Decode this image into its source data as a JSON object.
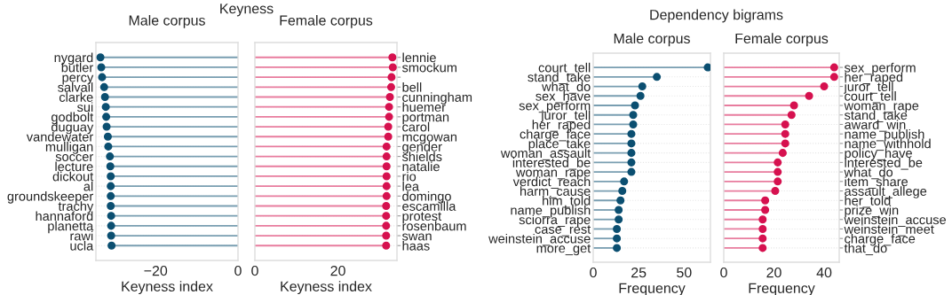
{
  "chart_data": [
    {
      "type": "lollipop",
      "title": "Male corpus",
      "annotations": [
        "Keyness"
      ],
      "xlabel": "Keyness index",
      "orientation": "horizontal",
      "grid": "y",
      "marker": "circle",
      "categories": [
        "nygard",
        "butler",
        "percy",
        "salvail",
        "clarke",
        "sui",
        "godbolt",
        "duguay",
        "vandewater",
        "mulligan",
        "soccer",
        "lecture",
        "dickout",
        "al",
        "groundskeeper",
        "trachy",
        "hannaford",
        "planetta",
        "rawi",
        "ucla"
      ],
      "series": [
        {
          "color": "#0b4f71",
          "values": [
            -33.4,
            -33.2,
            -33.0,
            -32.5,
            -32.3,
            -32.1,
            -32.0,
            -31.9,
            -31.6,
            -31.5,
            -31.1,
            -31.0,
            -30.9,
            -30.9,
            -30.9,
            -30.9,
            -30.8,
            -30.8,
            -30.8,
            -30.7
          ]
        }
      ],
      "xlim": [
        -34.5,
        0
      ],
      "xticks": [
        {
          "value": -20,
          "label": "−20"
        },
        0
      ]
    },
    {
      "type": "lollipop",
      "title": "Female corpus",
      "xlabel": "Keyness index",
      "orientation": "horizontal",
      "grid": "y",
      "marker": "circle",
      "categories": [
        "lennie",
        "smockum",
        null,
        "bell",
        "cunningham",
        "huemer",
        "portman",
        "carol",
        "mcgowan",
        "gender",
        "shields",
        "natalie",
        "rio",
        "lea",
        "domingo",
        "escamilla",
        "protest",
        "rosenbaum",
        "swan",
        "haas"
      ],
      "series": [
        {
          "color": "#d6114f",
          "values": [
            33.1,
            33.2,
            32.9,
            32.8,
            32.5,
            32.3,
            32.3,
            32.1,
            32.1,
            31.7,
            31.7,
            31.7,
            31.7,
            31.7,
            31.7,
            31.6,
            31.6,
            31.6,
            31.6,
            31.6
          ]
        }
      ],
      "xlim": [
        0,
        34.2
      ],
      "xticks": [
        0,
        20
      ]
    },
    {
      "type": "lollipop",
      "title": "Male corpus",
      "annotations": [
        "Dependency bigrams"
      ],
      "xlabel": "Frequency",
      "orientation": "horizontal",
      "grid": "y",
      "marker": "circle",
      "categories": [
        "court_tell",
        "stand_take",
        "what_do",
        "sex_have",
        "sex_perform",
        "juror_tell",
        "her_raped",
        "charge_face",
        "place_take",
        "woman_assault",
        "interested_be",
        "woman_rape",
        "verdict_reach",
        "harm_cause",
        "him_told",
        "name_publish",
        "sciorra_rape",
        "case_rest",
        "weinstein_accuse",
        "more_get"
      ],
      "series": [
        {
          "color": "#0b4f71",
          "values": [
            63,
            35,
            27,
            26,
            23,
            22,
            22,
            21,
            21,
            21,
            21,
            21,
            17,
            16,
            15,
            14,
            14,
            13,
            13,
            13
          ]
        }
      ],
      "xlim": [
        0,
        64.5
      ],
      "xticks": [
        0,
        25,
        50
      ]
    },
    {
      "type": "lollipop",
      "title": "Female corpus",
      "xlabel": "Frequency",
      "orientation": "horizontal",
      "grid": "y",
      "marker": "circle",
      "categories": [
        "sex_perform",
        "her_raped",
        "juror_tell",
        "court_tell",
        "woman_rape",
        "stand_take",
        "award_win",
        "name_publish",
        "name_withhold",
        "policy_have",
        "interested_be",
        "what_do",
        "item_share",
        "assault_allege",
        "her_told",
        "prize_win",
        "weinstein_accuse",
        "weinstein_meet",
        "charge_face",
        "that_do"
      ],
      "series": [
        {
          "color": "#d6114f",
          "values": [
            44,
            44,
            40,
            34,
            28,
            27,
            24.5,
            24.5,
            24.5,
            23.5,
            21.5,
            21.5,
            21.5,
            20.5,
            16.5,
            16.5,
            15.5,
            15.5,
            15.5,
            15.5
          ]
        }
      ],
      "xlim": [
        0,
        46
      ],
      "xticks": [
        0,
        20,
        40
      ]
    }
  ]
}
